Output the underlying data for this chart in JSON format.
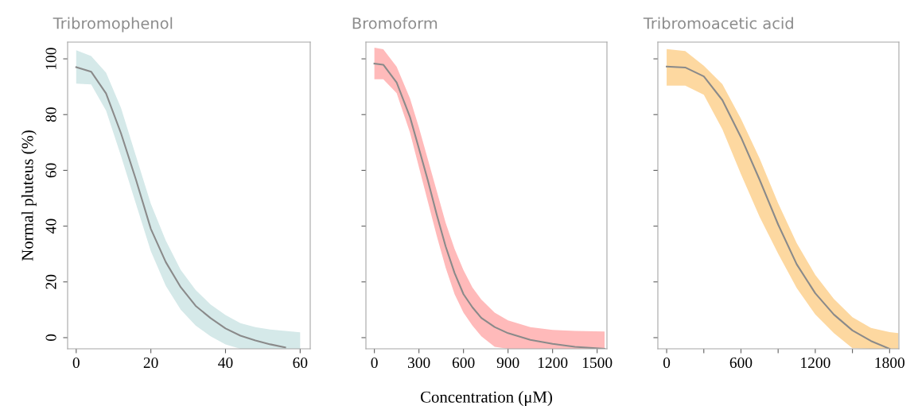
{
  "chart_data": [
    {
      "type": "line",
      "title": "Tribromophenol",
      "ylabel": "Normal pluteus (%)",
      "xlim": [
        -2.3,
        62.7
      ],
      "ylim": [
        -4,
        106
      ],
      "xticks": [
        0,
        20,
        40,
        60
      ],
      "yticks": [
        0,
        20,
        40,
        60,
        80,
        100
      ],
      "grid": false,
      "legend": false,
      "colors": [
        "#d5e9e9"
      ],
      "x": [
        0,
        4,
        8,
        12,
        16,
        20,
        24,
        28,
        32,
        36,
        40,
        44,
        48,
        52,
        56,
        60
      ],
      "series": [
        {
          "color": "#8a8a8a",
          "values": [
            97,
            95.4,
            87.6,
            73.3,
            56.7,
            39,
            27.1,
            18.1,
            11.4,
            7,
            3.3,
            0.7,
            -1,
            -2.4,
            -3.5,
            null
          ],
          "upper": [
            103.1,
            101,
            95,
            82.4,
            65.2,
            48,
            34.8,
            24.3,
            17.1,
            11.9,
            8.1,
            5.2,
            3.8,
            2.9,
            2.4,
            1.9
          ],
          "lower": [
            91.1,
            90.8,
            81.4,
            65.2,
            48,
            31,
            18.6,
            10,
            4.3,
            0.5,
            -2.4,
            -4,
            -4,
            -4,
            -4,
            -4
          ]
        }
      ]
    },
    {
      "type": "line",
      "title": "Bromoform",
      "xlabel": "Concentration (μM)",
      "xlim": [
        -57,
        1566
      ],
      "ylim": [
        -4,
        106
      ],
      "xticks": [
        0,
        300,
        600,
        900,
        1200,
        1500
      ],
      "yticks": [
        {
          "value": 0,
          "label": null
        },
        {
          "value": 20,
          "label": null
        },
        {
          "value": 40,
          "label": null
        },
        {
          "value": 60,
          "label": null
        },
        {
          "value": 80,
          "label": null
        },
        {
          "value": 100,
          "label": null
        }
      ],
      "tick_labels": "x",
      "grid": false,
      "legend": false,
      "colors": [
        "#ffbaba"
      ],
      "x": [
        0,
        60,
        150,
        240,
        300,
        360,
        420,
        480,
        540,
        600,
        660,
        720,
        810,
        900,
        1050,
        1200,
        1350,
        1550
      ],
      "series": [
        {
          "color": "#8a8a8a",
          "values": [
            98.3,
            97.9,
            91.5,
            79.1,
            67.8,
            56.4,
            44.1,
            32.7,
            23.2,
            15.6,
            10.9,
            7.1,
            3.8,
            1.6,
            -0.8,
            -2.2,
            -3.3,
            -4
          ],
          "upper": [
            104,
            103.4,
            97.2,
            85.8,
            75.4,
            64,
            52.6,
            41.2,
            31.8,
            24.2,
            18,
            13.7,
            9,
            6.2,
            3.8,
            2.8,
            2.4,
            2.2
          ],
          "lower": [
            92.7,
            92.7,
            87.7,
            73.5,
            61.1,
            48.8,
            36.5,
            25.1,
            15.6,
            9,
            4.3,
            0.5,
            -3.3,
            -4,
            -4,
            -4,
            -4,
            -4
          ]
        }
      ]
    },
    {
      "type": "line",
      "title": "Tribromoacetic acid",
      "xlim": [
        -71,
        1875
      ],
      "ylim": [
        -4,
        106
      ],
      "xticks": [
        0,
        {
          "value": 300,
          "label": null
        },
        600,
        {
          "value": 900,
          "label": null
        },
        1200,
        {
          "value": 1500,
          "label": null
        },
        1800
      ],
      "yticks": [
        {
          "value": 0,
          "label": null
        },
        {
          "value": 20,
          "label": null
        },
        {
          "value": 40,
          "label": null
        },
        {
          "value": 60,
          "label": null
        },
        {
          "value": 80,
          "label": null
        },
        {
          "value": 100,
          "label": null
        }
      ],
      "tick_labels": "x",
      "grid": false,
      "legend": false,
      "colors": [
        "#fdd8a0"
      ],
      "x": [
        0,
        150,
        300,
        450,
        600,
        750,
        900,
        1050,
        1200,
        1350,
        1500,
        1650,
        1800,
        1870
      ],
      "series": [
        {
          "color": "#8a8a8a",
          "values": [
            97.2,
            96.9,
            93.7,
            85.2,
            71.9,
            56.7,
            40.6,
            26.3,
            15.9,
            8.3,
            2.6,
            -1.2,
            -4,
            null
          ],
          "upper": [
            103.5,
            102.8,
            97.5,
            90.9,
            78.5,
            64.3,
            48.2,
            33.9,
            22.5,
            13.9,
            7.3,
            3.5,
            2,
            1.6
          ],
          "lower": [
            90.4,
            90.4,
            87.1,
            74.7,
            58.6,
            43.4,
            30.1,
            17.8,
            8.3,
            1.6,
            -3.8,
            -4,
            -4,
            -4
          ]
        }
      ]
    }
  ]
}
